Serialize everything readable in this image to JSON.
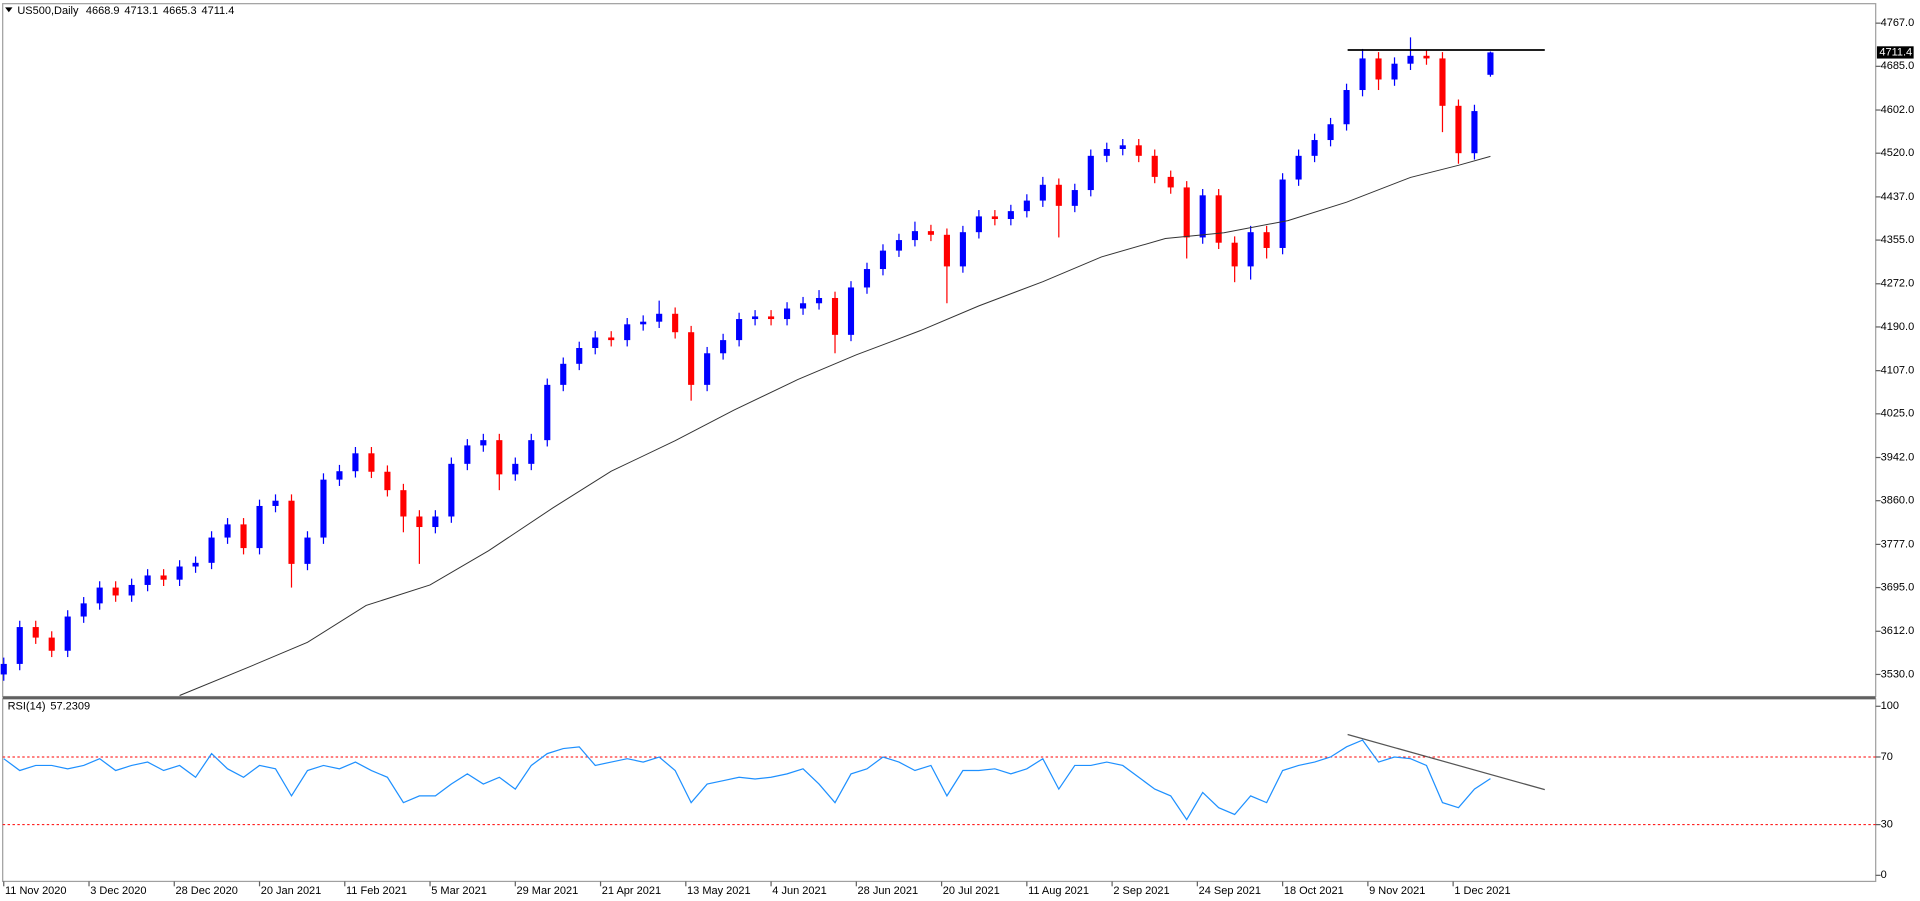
{
  "chart_data": [
    {
      "type": "candlestick",
      "title": "US500,Daily",
      "x": [
        0,
        3,
        6,
        9,
        12,
        15,
        18,
        21,
        24,
        27,
        30,
        33,
        36,
        39,
        42,
        45,
        48,
        51,
        54,
        57,
        60,
        63,
        66,
        69,
        72,
        75,
        78,
        81,
        84,
        87,
        90,
        93,
        96,
        99,
        102,
        105,
        108,
        111,
        114,
        117,
        120,
        123,
        126,
        129,
        132,
        135,
        138,
        141,
        144,
        147,
        150,
        153,
        156,
        159,
        162,
        165,
        168,
        171,
        174,
        177,
        180,
        183,
        186,
        189,
        192,
        195,
        198,
        201,
        204,
        207,
        210,
        213,
        216,
        219,
        222,
        225,
        228,
        231,
        234,
        237,
        240,
        243,
        246,
        249,
        252,
        255,
        258,
        261,
        264,
        267,
        270,
        273,
        276,
        279
      ],
      "open": [
        3530,
        3550,
        3620,
        3600,
        3575,
        3640,
        3665,
        3695,
        3680,
        3700,
        3718,
        3710,
        3735,
        3742,
        3790,
        3815,
        3770,
        3850,
        3860,
        3740,
        3790,
        3900,
        3916,
        3950,
        3915,
        3880,
        3830,
        3810,
        3830,
        3930,
        3965,
        3975,
        3910,
        3930,
        3975,
        4080,
        4120,
        4150,
        4170,
        4165,
        4195,
        4200,
        4215,
        4180,
        4080,
        4140,
        4165,
        4205,
        4210,
        4205,
        4225,
        4235,
        4245,
        4175,
        4265,
        4300,
        4335,
        4355,
        4372,
        4365,
        4305,
        4370,
        4400,
        4395,
        4410,
        4430,
        4460,
        4420,
        4450,
        4515,
        4528,
        4535,
        4515,
        4475,
        4455,
        4360,
        4440,
        4350,
        4305,
        4370,
        4340,
        4470,
        4515,
        4545,
        4575,
        4640,
        4700,
        4660,
        4690,
        4705,
        4700,
        4610,
        4520,
        4668.9
      ],
      "high": [
        3562,
        3632,
        3632,
        3612,
        3652,
        3677,
        3707,
        3707,
        3712,
        3730,
        3730,
        3747,
        3754,
        3802,
        3827,
        3827,
        3862,
        3872,
        3872,
        3802,
        3912,
        3928,
        3962,
        3962,
        3927,
        3892,
        3842,
        3842,
        3942,
        3977,
        3987,
        3987,
        3942,
        3987,
        4092,
        4132,
        4162,
        4182,
        4182,
        4207,
        4212,
        4240,
        4227,
        4192,
        4152,
        4177,
        4217,
        4222,
        4222,
        4237,
        4247,
        4260,
        4257,
        4277,
        4312,
        4347,
        4367,
        4390,
        4384,
        4377,
        4382,
        4412,
        4412,
        4422,
        4442,
        4475,
        4472,
        4462,
        4527,
        4540,
        4547,
        4547,
        4527,
        4487,
        4467,
        4452,
        4452,
        4362,
        4382,
        4382,
        4482,
        4527,
        4557,
        4587,
        4652,
        4718,
        4712,
        4702,
        4740,
        4717,
        4712,
        4622,
        4612,
        4713.1
      ],
      "low": [
        3518,
        3538,
        3588,
        3563,
        3563,
        3628,
        3653,
        3668,
        3668,
        3688,
        3698,
        3698,
        3723,
        3730,
        3778,
        3758,
        3758,
        3838,
        3695,
        3728,
        3778,
        3888,
        3904,
        3903,
        3868,
        3800,
        3740,
        3798,
        3818,
        3918,
        3953,
        3880,
        3898,
        3918,
        3963,
        4068,
        4108,
        4138,
        4153,
        4153,
        4183,
        4188,
        4168,
        4050,
        4068,
        4128,
        4153,
        4193,
        4193,
        4193,
        4213,
        4223,
        4140,
        4163,
        4253,
        4288,
        4323,
        4343,
        4353,
        4235,
        4293,
        4358,
        4383,
        4383,
        4398,
        4418,
        4360,
        4408,
        4438,
        4503,
        4516,
        4503,
        4463,
        4443,
        4320,
        4348,
        4338,
        4275,
        4280,
        4320,
        4328,
        4458,
        4503,
        4533,
        4563,
        4628,
        4640,
        4648,
        4678,
        4688,
        4560,
        4500,
        4508,
        4665.3
      ],
      "close": [
        3550,
        3620,
        3600,
        3575,
        3640,
        3665,
        3695,
        3680,
        3700,
        3718,
        3710,
        3735,
        3742,
        3790,
        3815,
        3770,
        3850,
        3860,
        3740,
        3790,
        3900,
        3916,
        3950,
        3915,
        3880,
        3830,
        3810,
        3830,
        3930,
        3965,
        3975,
        3910,
        3930,
        3975,
        4080,
        4120,
        4150,
        4170,
        4165,
        4195,
        4200,
        4215,
        4180,
        4080,
        4140,
        4165,
        4205,
        4210,
        4205,
        4225,
        4235,
        4245,
        4175,
        4265,
        4300,
        4335,
        4355,
        4372,
        4365,
        4305,
        4370,
        4400,
        4395,
        4410,
        4430,
        4460,
        4420,
        4450,
        4515,
        4528,
        4535,
        4515,
        4475,
        4455,
        4360,
        4440,
        4350,
        4305,
        4370,
        4340,
        4470,
        4515,
        4545,
        4575,
        4640,
        4700,
        4660,
        4690,
        4705,
        4700,
        4610,
        4520,
        4600,
        4711.4
      ],
      "up_color": "#0000ff",
      "down_color": "#ff0000",
      "xlim": [
        -0.2,
        351.3
      ],
      "xticks": [
        {
          "value": 0,
          "label": "11 Nov 2020"
        },
        {
          "value": 16,
          "label": "3 Dec 2020"
        },
        {
          "value": 32,
          "label": "28 Dec 2020"
        },
        {
          "value": 48,
          "label": "20 Jan 2021"
        },
        {
          "value": 64,
          "label": "11 Feb 2021"
        },
        {
          "value": 80,
          "label": "5 Mar 2021"
        },
        {
          "value": 96,
          "label": "29 Mar 2021"
        },
        {
          "value": 112,
          "label": "21 Apr 2021"
        },
        {
          "value": 128,
          "label": "13 May 2021"
        },
        {
          "value": 144,
          "label": "4 Jun 2021"
        },
        {
          "value": 160,
          "label": "28 Jun 2021"
        },
        {
          "value": 176,
          "label": "20 Jul 2021"
        },
        {
          "value": 192,
          "label": "11 Aug 2021"
        },
        {
          "value": 208,
          "label": "2 Sep 2021"
        },
        {
          "value": 224,
          "label": "24 Sep 2021"
        },
        {
          "value": 240,
          "label": "18 Oct 2021"
        },
        {
          "value": 256,
          "label": "9 Nov 2021"
        },
        {
          "value": 272,
          "label": "1 Dec 2021"
        }
      ],
      "ylim": [
        3488,
        4804
      ],
      "yticks": [
        {
          "value": 4767,
          "label": "4767.0"
        },
        {
          "value": 4685,
          "label": "4685.0"
        },
        {
          "value": 4602,
          "label": "4602.0"
        },
        {
          "value": 4520,
          "label": "4520.0"
        },
        {
          "value": 4437,
          "label": "4437.0"
        },
        {
          "value": 4355,
          "label": "4355.0"
        },
        {
          "value": 4272,
          "label": "4272.0"
        },
        {
          "value": 4190,
          "label": "4190.0"
        },
        {
          "value": 4107,
          "label": "4107.0"
        },
        {
          "value": 4025,
          "label": "4025.0"
        },
        {
          "value": 3942,
          "label": "3942.0"
        },
        {
          "value": 3860,
          "label": "3860.0"
        },
        {
          "value": 3777,
          "label": "3777.0"
        },
        {
          "value": 3695,
          "label": "3695.0"
        },
        {
          "value": 3612,
          "label": "3612.0"
        },
        {
          "value": 3530,
          "label": "3530.0"
        }
      ],
      "overlays": [
        {
          "type": "line",
          "color": "#333333",
          "x": [
            33,
            46,
            57,
            68,
            80,
            91,
            103,
            114,
            126,
            137,
            149,
            160,
            172,
            183,
            195,
            206,
            218,
            229,
            241,
            252,
            264,
            273,
            279
          ],
          "values": [
            3490,
            3544,
            3591,
            3661,
            3700,
            3765,
            3846,
            3916,
            3974,
            4032,
            4090,
            4137,
            4183,
            4230,
            4276,
            4323,
            4358,
            4369,
            4392,
            4427,
            4474,
            4497,
            4514
          ]
        }
      ],
      "annotations": [
        {
          "type": "hline",
          "color": "#000000",
          "x": [
            252.2,
            289.2
          ],
          "values": [
            4716,
            4716
          ]
        }
      ]
    },
    {
      "type": "line",
      "title": "RSI(14)",
      "color": "#1e90ff",
      "x": [
        0,
        3,
        6,
        9,
        12,
        15,
        18,
        21,
        24,
        27,
        30,
        33,
        36,
        39,
        42,
        45,
        48,
        51,
        54,
        57,
        60,
        63,
        66,
        69,
        72,
        75,
        78,
        81,
        84,
        87,
        90,
        93,
        96,
        99,
        102,
        105,
        108,
        111,
        114,
        117,
        120,
        123,
        126,
        129,
        132,
        135,
        138,
        141,
        144,
        147,
        150,
        153,
        156,
        159,
        162,
        165,
        168,
        171,
        174,
        177,
        180,
        183,
        186,
        189,
        192,
        195,
        198,
        201,
        204,
        207,
        210,
        213,
        216,
        219,
        222,
        225,
        228,
        231,
        234,
        237,
        240,
        243,
        246,
        249,
        252,
        255,
        258,
        261,
        264,
        267,
        270,
        273,
        276,
        279
      ],
      "values": [
        69,
        62,
        65,
        65,
        63,
        65,
        69,
        62,
        65,
        67,
        62,
        65,
        58,
        72,
        63,
        58,
        65,
        63,
        47,
        62,
        65,
        63,
        67,
        62,
        58,
        43,
        47,
        47,
        54,
        60,
        54,
        58,
        51,
        65,
        72,
        75,
        76,
        65,
        67,
        69,
        67,
        70,
        62,
        43,
        54,
        56,
        58,
        57,
        58,
        60,
        63,
        54,
        43,
        60,
        63,
        70,
        67,
        62,
        65,
        47,
        62,
        62,
        63,
        60,
        63,
        69,
        51,
        65,
        65,
        67,
        65,
        58,
        51,
        47,
        33,
        49,
        40,
        36,
        47,
        43,
        62,
        65,
        67,
        70,
        76,
        80,
        67,
        70,
        69,
        65,
        43,
        40,
        51,
        57.2309
      ],
      "xlim": [
        -0.2,
        351.3
      ],
      "ylim": [
        -3.6,
        104.3
      ],
      "yticks": [
        100,
        70,
        30,
        0
      ],
      "levels": [
        70,
        30
      ],
      "level_color": "#ff0000",
      "annotations": [
        {
          "type": "trendline",
          "color": "#555555",
          "x": [
            252.2,
            289.2
          ],
          "values": [
            83.3,
            50.7
          ]
        }
      ]
    }
  ]
}
